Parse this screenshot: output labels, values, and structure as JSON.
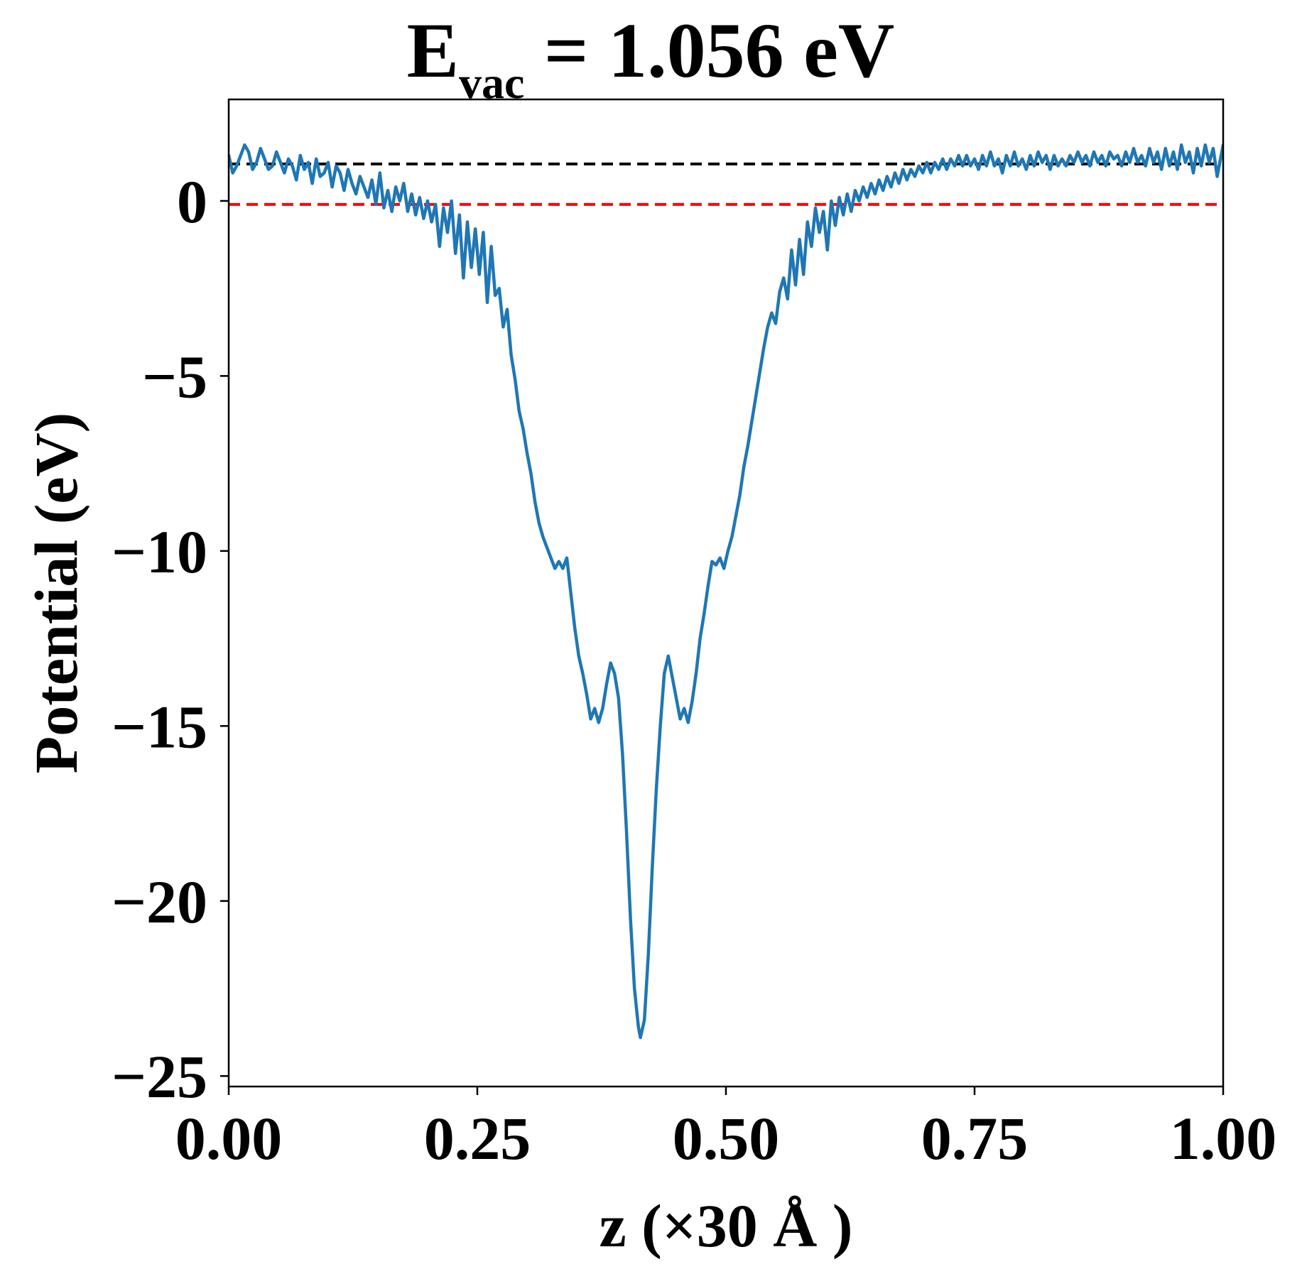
{
  "chart_data": {
    "type": "line",
    "title": {
      "main": "E",
      "subscript": "vac",
      "rest": " = 1.056 eV"
    },
    "xlabel": "z (×30 Å )",
    "ylabel": "Potential (eV)",
    "xlim": [
      0.0,
      1.0
    ],
    "ylim": [
      -25.3,
      2.9
    ],
    "xticks": [
      0.0,
      0.25,
      0.5,
      0.75,
      1.0
    ],
    "xtick_labels": [
      "0.00",
      "0.25",
      "0.50",
      "0.75",
      "1.00"
    ],
    "yticks": [
      0,
      -5,
      -10,
      -15,
      -20,
      -25
    ],
    "ytick_labels": [
      "0",
      "−5",
      "−10",
      "−15",
      "−20",
      "−25"
    ],
    "grid": false,
    "reference_lines": [
      {
        "y": 1.056,
        "color": "#000000",
        "style": "dashed"
      },
      {
        "y": -0.1,
        "color": "#ff0000",
        "style": "dashed"
      }
    ],
    "series": [
      {
        "color": "#1f77b4",
        "points": [
          [
            0.0,
            1.3
          ],
          [
            0.004,
            0.8
          ],
          [
            0.008,
            1.0
          ],
          [
            0.012,
            1.3
          ],
          [
            0.016,
            1.6
          ],
          [
            0.02,
            1.4
          ],
          [
            0.024,
            0.9
          ],
          [
            0.028,
            1.1
          ],
          [
            0.032,
            1.5
          ],
          [
            0.036,
            1.2
          ],
          [
            0.04,
            0.9
          ],
          [
            0.044,
            1.0
          ],
          [
            0.048,
            1.4
          ],
          [
            0.052,
            1.1
          ],
          [
            0.056,
            0.8
          ],
          [
            0.06,
            1.2
          ],
          [
            0.064,
            1.0
          ],
          [
            0.068,
            0.6
          ],
          [
            0.072,
            1.3
          ],
          [
            0.076,
            0.9
          ],
          [
            0.08,
            1.1
          ],
          [
            0.084,
            0.5
          ],
          [
            0.088,
            1.2
          ],
          [
            0.092,
            0.7
          ],
          [
            0.096,
            0.8
          ],
          [
            0.1,
            1.1
          ],
          [
            0.104,
            0.4
          ],
          [
            0.108,
            1.0
          ],
          [
            0.112,
            0.8
          ],
          [
            0.116,
            0.3
          ],
          [
            0.12,
            0.9
          ],
          [
            0.124,
            0.5
          ],
          [
            0.128,
            0.2
          ],
          [
            0.132,
            0.7
          ],
          [
            0.136,
            0.4
          ],
          [
            0.14,
            0.1
          ],
          [
            0.144,
            0.6
          ],
          [
            0.148,
            -0.1
          ],
          [
            0.152,
            0.8
          ],
          [
            0.156,
            -0.2
          ],
          [
            0.16,
            0.3
          ],
          [
            0.164,
            -0.3
          ],
          [
            0.168,
            0.4
          ],
          [
            0.172,
            0.0
          ],
          [
            0.176,
            0.5
          ],
          [
            0.18,
            -0.3
          ],
          [
            0.184,
            0.2
          ],
          [
            0.188,
            -0.4
          ],
          [
            0.192,
            0.1
          ],
          [
            0.196,
            -0.5
          ],
          [
            0.2,
            0.0
          ],
          [
            0.204,
            -0.6
          ],
          [
            0.208,
            -0.1
          ],
          [
            0.212,
            -1.3
          ],
          [
            0.216,
            -0.2
          ],
          [
            0.22,
            -0.9
          ],
          [
            0.224,
            0.0
          ],
          [
            0.228,
            -1.5
          ],
          [
            0.232,
            -0.4
          ],
          [
            0.236,
            -2.2
          ],
          [
            0.24,
            -0.6
          ],
          [
            0.244,
            -1.9
          ],
          [
            0.248,
            -0.8
          ],
          [
            0.252,
            -2.1
          ],
          [
            0.256,
            -0.9
          ],
          [
            0.26,
            -2.9
          ],
          [
            0.264,
            -1.3
          ],
          [
            0.268,
            -2.7
          ],
          [
            0.272,
            -2.5
          ],
          [
            0.276,
            -3.6
          ],
          [
            0.28,
            -3.1
          ],
          [
            0.284,
            -4.4
          ],
          [
            0.288,
            -5.1
          ],
          [
            0.292,
            -6.0
          ],
          [
            0.296,
            -6.5
          ],
          [
            0.3,
            -7.2
          ],
          [
            0.304,
            -7.8
          ],
          [
            0.308,
            -8.6
          ],
          [
            0.312,
            -9.2
          ],
          [
            0.316,
            -9.6
          ],
          [
            0.32,
            -9.9
          ],
          [
            0.324,
            -10.2
          ],
          [
            0.328,
            -10.5
          ],
          [
            0.332,
            -10.3
          ],
          [
            0.336,
            -10.5
          ],
          [
            0.34,
            -10.2
          ],
          [
            0.344,
            -11.2
          ],
          [
            0.348,
            -12.2
          ],
          [
            0.352,
            -13.0
          ],
          [
            0.356,
            -13.5
          ],
          [
            0.36,
            -14.1
          ],
          [
            0.364,
            -14.8
          ],
          [
            0.368,
            -14.5
          ],
          [
            0.372,
            -14.9
          ],
          [
            0.376,
            -14.5
          ],
          [
            0.38,
            -13.8
          ],
          [
            0.384,
            -13.2
          ],
          [
            0.388,
            -13.5
          ],
          [
            0.392,
            -14.2
          ],
          [
            0.396,
            -15.8
          ],
          [
            0.4,
            -18.0
          ],
          [
            0.404,
            -20.5
          ],
          [
            0.408,
            -22.5
          ],
          [
            0.412,
            -23.6
          ],
          [
            0.414,
            -23.9
          ],
          [
            0.418,
            -23.4
          ],
          [
            0.422,
            -21.5
          ],
          [
            0.426,
            -19.0
          ],
          [
            0.43,
            -16.8
          ],
          [
            0.434,
            -15.0
          ],
          [
            0.438,
            -13.5
          ],
          [
            0.442,
            -13.0
          ],
          [
            0.446,
            -13.6
          ],
          [
            0.45,
            -14.2
          ],
          [
            0.454,
            -14.8
          ],
          [
            0.458,
            -14.5
          ],
          [
            0.462,
            -14.9
          ],
          [
            0.466,
            -14.3
          ],
          [
            0.47,
            -13.5
          ],
          [
            0.474,
            -12.5
          ],
          [
            0.478,
            -11.8
          ],
          [
            0.482,
            -11.0
          ],
          [
            0.486,
            -10.3
          ],
          [
            0.49,
            -10.4
          ],
          [
            0.494,
            -10.2
          ],
          [
            0.498,
            -10.5
          ],
          [
            0.502,
            -10.0
          ],
          [
            0.506,
            -9.6
          ],
          [
            0.51,
            -9.0
          ],
          [
            0.514,
            -8.4
          ],
          [
            0.518,
            -7.6
          ],
          [
            0.522,
            -7.0
          ],
          [
            0.526,
            -6.3
          ],
          [
            0.53,
            -5.6
          ],
          [
            0.534,
            -4.9
          ],
          [
            0.538,
            -4.2
          ],
          [
            0.542,
            -3.6
          ],
          [
            0.546,
            -3.2
          ],
          [
            0.55,
            -3.5
          ],
          [
            0.554,
            -2.6
          ],
          [
            0.558,
            -2.2
          ],
          [
            0.562,
            -2.8
          ],
          [
            0.566,
            -1.4
          ],
          [
            0.57,
            -2.4
          ],
          [
            0.574,
            -1.1
          ],
          [
            0.578,
            -2.1
          ],
          [
            0.582,
            -0.6
          ],
          [
            0.586,
            -1.3
          ],
          [
            0.59,
            -0.2
          ],
          [
            0.594,
            -0.9
          ],
          [
            0.598,
            -0.3
          ],
          [
            0.602,
            -1.4
          ],
          [
            0.606,
            0.0
          ],
          [
            0.61,
            -0.7
          ],
          [
            0.614,
            0.1
          ],
          [
            0.618,
            -0.4
          ],
          [
            0.622,
            0.2
          ],
          [
            0.626,
            -0.3
          ],
          [
            0.63,
            0.3
          ],
          [
            0.634,
            0.0
          ],
          [
            0.638,
            0.4
          ],
          [
            0.642,
            0.1
          ],
          [
            0.646,
            0.5
          ],
          [
            0.65,
            0.2
          ],
          [
            0.654,
            0.6
          ],
          [
            0.658,
            0.3
          ],
          [
            0.662,
            0.7
          ],
          [
            0.666,
            0.4
          ],
          [
            0.67,
            0.8
          ],
          [
            0.674,
            0.5
          ],
          [
            0.678,
            0.9
          ],
          [
            0.682,
            0.6
          ],
          [
            0.686,
            0.9
          ],
          [
            0.69,
            0.7
          ],
          [
            0.694,
            1.0
          ],
          [
            0.698,
            0.8
          ],
          [
            0.702,
            1.1
          ],
          [
            0.706,
            0.8
          ],
          [
            0.71,
            1.1
          ],
          [
            0.714,
            0.9
          ],
          [
            0.718,
            1.2
          ],
          [
            0.722,
            0.9
          ],
          [
            0.726,
            1.2
          ],
          [
            0.73,
            1.0
          ],
          [
            0.734,
            1.3
          ],
          [
            0.738,
            1.0
          ],
          [
            0.742,
            1.3
          ],
          [
            0.746,
            1.0
          ],
          [
            0.75,
            1.2
          ],
          [
            0.754,
            0.9
          ],
          [
            0.758,
            1.3
          ],
          [
            0.762,
            1.0
          ],
          [
            0.766,
            1.4
          ],
          [
            0.77,
            1.0
          ],
          [
            0.774,
            1.2
          ],
          [
            0.778,
            0.8
          ],
          [
            0.782,
            1.3
          ],
          [
            0.786,
            1.0
          ],
          [
            0.79,
            1.4
          ],
          [
            0.794,
            1.0
          ],
          [
            0.798,
            1.2
          ],
          [
            0.802,
            0.9
          ],
          [
            0.806,
            1.3
          ],
          [
            0.81,
            1.0
          ],
          [
            0.814,
            1.4
          ],
          [
            0.818,
            1.1
          ],
          [
            0.822,
            1.3
          ],
          [
            0.826,
            0.9
          ],
          [
            0.83,
            1.3
          ],
          [
            0.834,
            1.0
          ],
          [
            0.838,
            1.2
          ],
          [
            0.842,
            1.0
          ],
          [
            0.846,
            1.3
          ],
          [
            0.85,
            1.1
          ],
          [
            0.854,
            1.4
          ],
          [
            0.858,
            1.1
          ],
          [
            0.862,
            1.3
          ],
          [
            0.866,
            1.0
          ],
          [
            0.87,
            1.4
          ],
          [
            0.874,
            1.1
          ],
          [
            0.878,
            1.3
          ],
          [
            0.882,
            1.0
          ],
          [
            0.886,
            1.4
          ],
          [
            0.89,
            1.2
          ],
          [
            0.894,
            1.3
          ],
          [
            0.898,
            1.0
          ],
          [
            0.902,
            1.4
          ],
          [
            0.906,
            1.1
          ],
          [
            0.91,
            1.5
          ],
          [
            0.914,
            1.1
          ],
          [
            0.918,
            1.3
          ],
          [
            0.922,
            1.0
          ],
          [
            0.926,
            1.5
          ],
          [
            0.93,
            1.1
          ],
          [
            0.934,
            1.4
          ],
          [
            0.938,
            0.9
          ],
          [
            0.942,
            1.5
          ],
          [
            0.946,
            1.0
          ],
          [
            0.95,
            1.4
          ],
          [
            0.954,
            0.9
          ],
          [
            0.958,
            1.6
          ],
          [
            0.962,
            1.1
          ],
          [
            0.966,
            1.4
          ],
          [
            0.97,
            0.8
          ],
          [
            0.974,
            1.5
          ],
          [
            0.978,
            1.0
          ],
          [
            0.982,
            1.6
          ],
          [
            0.986,
            1.1
          ],
          [
            0.99,
            1.5
          ],
          [
            0.994,
            0.7
          ],
          [
            1.0,
            1.6
          ]
        ]
      }
    ]
  }
}
